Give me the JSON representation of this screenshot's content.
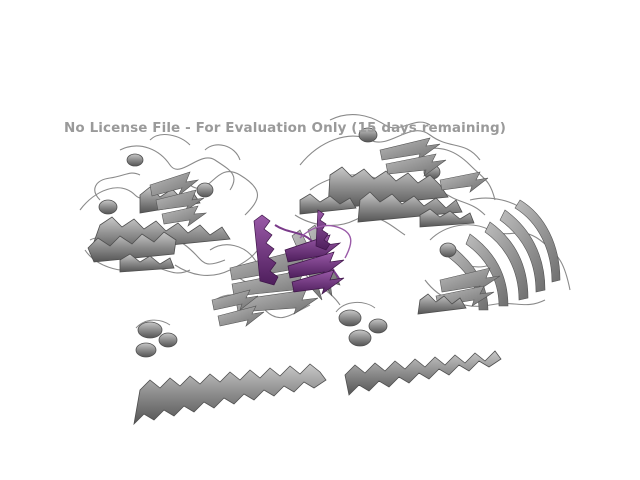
{
  "viewer": {
    "watermark": "No License File - For Evaluation Only (15 days remaining)"
  },
  "structure": {
    "representation": "cartoon",
    "colors": {
      "background": "#ffffff",
      "chain_main": "#8c8c8c",
      "chain_main_dark": "#5a5a5a",
      "chain_main_light": "#c4c4c4",
      "chain_highlight": "#6b2f7a",
      "chain_highlight_light": "#9a5aa8",
      "watermark": "#9a9a9a"
    }
  }
}
